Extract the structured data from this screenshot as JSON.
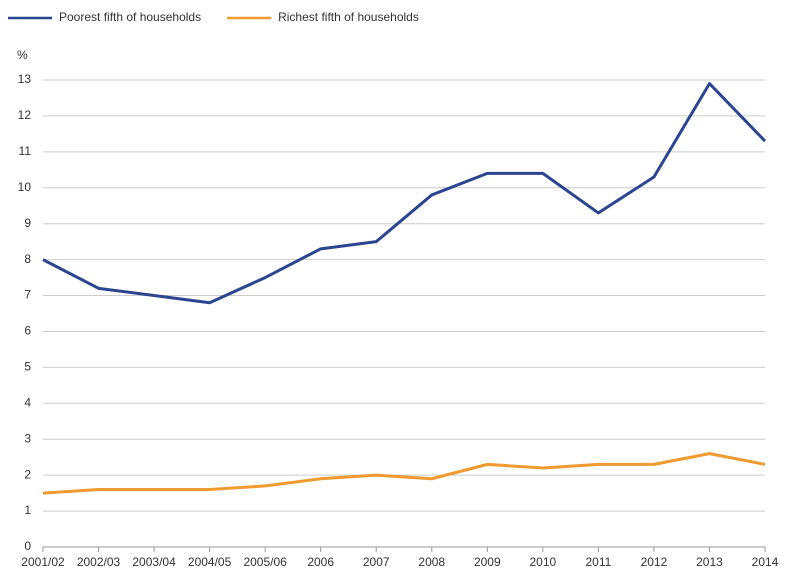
{
  "chart_data": {
    "type": "line",
    "y_label": "%",
    "categories": [
      "2001/02",
      "2002/03",
      "2003/04",
      "2004/05",
      "2005/06",
      "2006",
      "2007",
      "2008",
      "2009",
      "2010",
      "2011",
      "2012",
      "2013",
      "2014"
    ],
    "series": [
      {
        "name": "Poorest fifth of households",
        "color": "#2b4590",
        "values": [
          8.0,
          7.2,
          7.0,
          6.8,
          7.5,
          8.3,
          8.5,
          9.8,
          10.4,
          10.4,
          9.3,
          10.3,
          12.9,
          11.3
        ]
      },
      {
        "name": "Richest fifth of households",
        "color": "#f09a30",
        "values": [
          1.5,
          1.6,
          1.6,
          1.6,
          1.7,
          1.9,
          2.0,
          1.9,
          2.3,
          2.2,
          2.3,
          2.3,
          2.6,
          2.3
        ]
      }
    ],
    "ylim": [
      0,
      13
    ],
    "yticks": [
      0,
      1,
      2,
      3,
      4,
      5,
      6,
      7,
      8,
      9,
      10,
      11,
      12,
      13
    ],
    "grid": true
  }
}
